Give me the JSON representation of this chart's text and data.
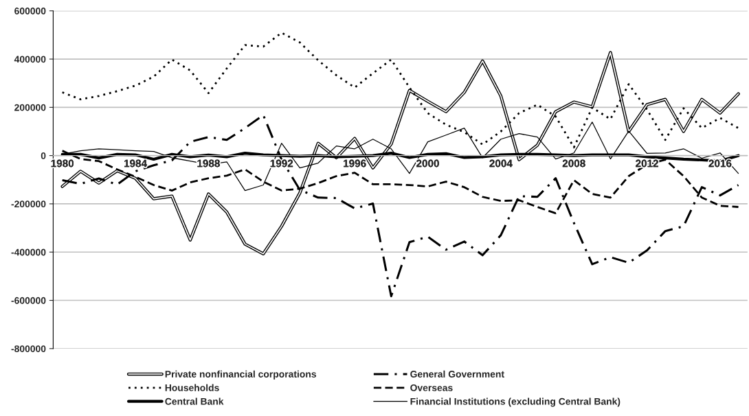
{
  "chart_data": {
    "type": "line",
    "x": [
      1980,
      1981,
      1982,
      1983,
      1984,
      1985,
      1986,
      1987,
      1988,
      1989,
      1990,
      1991,
      1992,
      1993,
      1994,
      1995,
      1996,
      1997,
      1998,
      1999,
      2000,
      2001,
      2002,
      2003,
      2004,
      2005,
      2006,
      2007,
      2008,
      2009,
      2010,
      2011,
      2012,
      2013,
      2014,
      2015,
      2016,
      2017
    ],
    "series": [
      {
        "name": "Private nonfinancial corporations",
        "color": "#000000",
        "line_style": "solid",
        "values": [
          -128000,
          -65000,
          -114000,
          -63000,
          -94000,
          -179000,
          -168000,
          -350000,
          -159000,
          -234000,
          -367000,
          -407000,
          -293000,
          -155000,
          51000,
          -9000,
          71000,
          -51000,
          48000,
          270000,
          225000,
          182000,
          262000,
          392000,
          247000,
          -17000,
          43000,
          182000,
          222000,
          202000,
          427000,
          100000,
          211000,
          233000,
          100000,
          233000,
          176000,
          256000
        ]
      },
      {
        "name": "General Government",
        "color": "#000000",
        "line_style": "dashdot",
        "values": [
          -102000,
          -117000,
          -95000,
          -120000,
          -65000,
          -40000,
          -20000,
          57000,
          77000,
          65000,
          114000,
          168000,
          -17000,
          -142000,
          -174000,
          -176000,
          -219000,
          -199000,
          -583000,
          -359000,
          -336000,
          -390000,
          -356000,
          -413000,
          -330000,
          -168000,
          -171000,
          -94000,
          -279000,
          -450000,
          -421000,
          -444000,
          -393000,
          -313000,
          -293000,
          -131000,
          -165000,
          -122000
        ]
      },
      {
        "name": "Households",
        "color": "#000000",
        "line_style": "dotted",
        "values": [
          262000,
          233000,
          247000,
          267000,
          290000,
          327000,
          398000,
          353000,
          259000,
          361000,
          458000,
          452000,
          509000,
          469000,
          395000,
          333000,
          282000,
          341000,
          398000,
          282000,
          176000,
          128000,
          97000,
          46000,
          100000,
          176000,
          211000,
          162000,
          34000,
          199000,
          151000,
          296000,
          191000,
          65000,
          196000,
          114000,
          156000,
          114000
        ]
      },
      {
        "name": "Overseas",
        "color": "#000000",
        "line_style": "dashed",
        "values": [
          20000,
          -14000,
          -23000,
          -57000,
          -88000,
          -122000,
          -145000,
          -111000,
          -94000,
          -83000,
          -57000,
          -108000,
          -145000,
          -137000,
          -114000,
          -85000,
          -71000,
          -119000,
          -119000,
          -122000,
          -128000,
          -108000,
          -131000,
          -171000,
          -188000,
          -185000,
          -213000,
          -239000,
          -102000,
          -159000,
          -174000,
          -85000,
          -37000,
          -17000,
          -85000,
          -174000,
          -208000,
          -213000
        ]
      },
      {
        "name": "Central Bank",
        "color": "#000000",
        "line_style": "solid",
        "values": [
          5000,
          5000,
          -10000,
          5000,
          3000,
          -15000,
          5000,
          -5000,
          2000,
          -5000,
          10000,
          3000,
          0,
          -3000,
          0,
          -5000,
          -3000,
          0,
          10000,
          -8000,
          5000,
          8000,
          -8000,
          -5000,
          3000,
          5000,
          5000,
          3000,
          0,
          3000,
          3000,
          3000,
          -5000,
          -10000,
          -15000,
          -18000,
          -22000,
          0
        ]
      },
      {
        "name": "Financial Institutions (excluding Central Bank)",
        "color": "#000000",
        "line_style": "solid",
        "values": [
          6000,
          20000,
          28000,
          24000,
          20000,
          17000,
          -9000,
          -23000,
          -37000,
          -26000,
          -145000,
          -122000,
          51000,
          -51000,
          -31000,
          40000,
          28000,
          68000,
          28000,
          -74000,
          57000,
          85000,
          114000,
          -9000,
          68000,
          91000,
          77000,
          -14000,
          11000,
          139000,
          -14000,
          102000,
          9000,
          11000,
          28000,
          -11000,
          11000,
          -74000
        ]
      }
    ],
    "xlim": [
      1979.5,
      2017.5
    ],
    "xticks": [
      1980,
      1984,
      1988,
      1992,
      1996,
      2000,
      2004,
      2008,
      2012,
      2016
    ],
    "ylim": [
      -800000,
      600000
    ],
    "yticks": [
      -800000,
      -600000,
      -400000,
      -200000,
      0,
      200000,
      400000,
      600000
    ],
    "grid": "y",
    "legend": "bottom",
    "marker": "none"
  }
}
